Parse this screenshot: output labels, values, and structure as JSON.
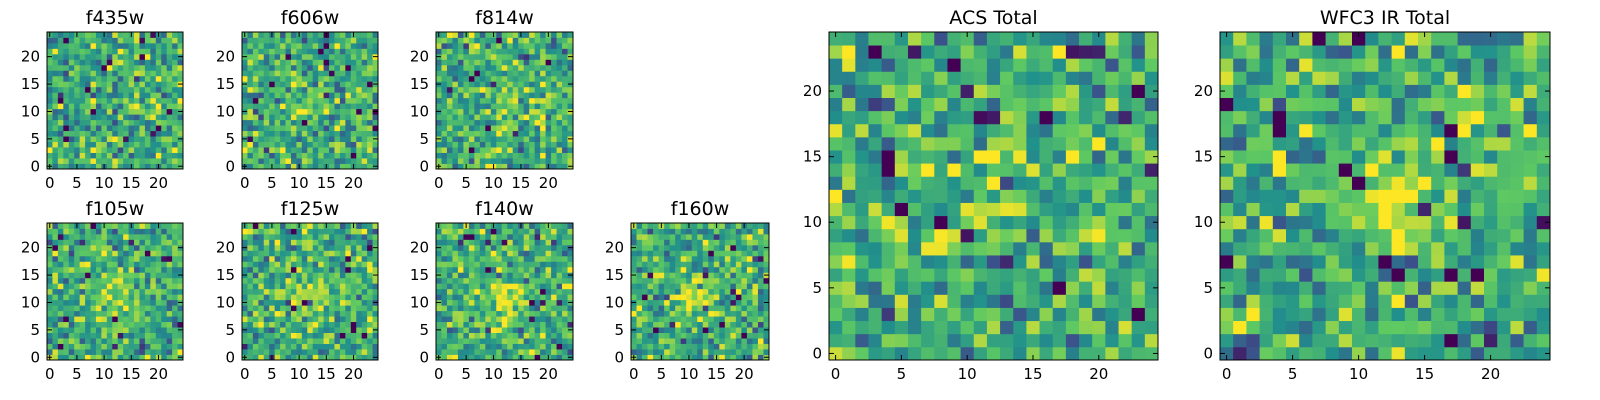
{
  "figure": {
    "colormap": "viridis",
    "colormap_stops": [
      "#440154",
      "#3b528b",
      "#21918c",
      "#5ec962",
      "#fde725"
    ],
    "grid": false,
    "legend": "none"
  },
  "chart_data": [
    {
      "type": "heatmap",
      "title": "f435w",
      "grid_size": [
        25,
        25
      ],
      "xlim": [
        -0.5,
        24.5
      ],
      "ylim": [
        -0.5,
        24.5
      ],
      "xticks": [
        0,
        5,
        10,
        15,
        20
      ],
      "yticks": [
        0,
        5,
        10,
        15,
        20
      ],
      "xlabel": "",
      "ylabel": "",
      "peak": {
        "x": 19,
        "y": 6,
        "sigma": 0.7,
        "amplitude": -1.0
      }
    },
    {
      "type": "heatmap",
      "title": "f606w",
      "grid_size": [
        25,
        25
      ],
      "xlim": [
        -0.5,
        24.5
      ],
      "ylim": [
        -0.5,
        24.5
      ],
      "xticks": [
        0,
        5,
        10,
        15,
        20
      ],
      "yticks": [
        0,
        5,
        10,
        15,
        20
      ],
      "xlabel": "",
      "ylabel": "",
      "peak": {
        "x": 12,
        "y": 12,
        "sigma": 2.0,
        "amplitude": 0.35
      }
    },
    {
      "type": "heatmap",
      "title": "f814w",
      "grid_size": [
        25,
        25
      ],
      "xlim": [
        -0.5,
        24.5
      ],
      "ylim": [
        -0.5,
        24.5
      ],
      "xticks": [
        0,
        5,
        10,
        15,
        20
      ],
      "yticks": [
        0,
        5,
        10,
        15,
        20
      ],
      "xlabel": "",
      "ylabel": "",
      "peak": {
        "x": 12,
        "y": 12,
        "sigma": 2.2,
        "amplitude": 0.45
      }
    },
    {
      "type": "heatmap",
      "title": "f105w",
      "grid_size": [
        25,
        25
      ],
      "xlim": [
        -0.5,
        24.5
      ],
      "ylim": [
        -0.5,
        24.5
      ],
      "xticks": [
        0,
        5,
        10,
        15,
        20
      ],
      "yticks": [
        0,
        5,
        10,
        15,
        20
      ],
      "xlabel": "",
      "ylabel": "",
      "peak": {
        "x": 12,
        "y": 11,
        "sigma": 2.5,
        "amplitude": 0.6
      }
    },
    {
      "type": "heatmap",
      "title": "f125w",
      "grid_size": [
        25,
        25
      ],
      "xlim": [
        -0.5,
        24.5
      ],
      "ylim": [
        -0.5,
        24.5
      ],
      "xticks": [
        0,
        5,
        10,
        15,
        20
      ],
      "yticks": [
        0,
        5,
        10,
        15,
        20
      ],
      "xlabel": "",
      "ylabel": "",
      "peak": {
        "x": 12,
        "y": 11,
        "sigma": 2.5,
        "amplitude": 0.6
      }
    },
    {
      "type": "heatmap",
      "title": "f140w",
      "grid_size": [
        25,
        25
      ],
      "xlim": [
        -0.5,
        24.5
      ],
      "ylim": [
        -0.5,
        24.5
      ],
      "xticks": [
        0,
        5,
        10,
        15,
        20
      ],
      "yticks": [
        0,
        5,
        10,
        15,
        20
      ],
      "xlabel": "",
      "ylabel": "",
      "peak": {
        "x": 12,
        "y": 11,
        "sigma": 2.5,
        "amplitude": 0.7
      }
    },
    {
      "type": "heatmap",
      "title": "f160w",
      "grid_size": [
        25,
        25
      ],
      "xlim": [
        -0.5,
        24.5
      ],
      "ylim": [
        -0.5,
        24.5
      ],
      "xticks": [
        0,
        5,
        10,
        15,
        20
      ],
      "yticks": [
        0,
        5,
        10,
        15,
        20
      ],
      "xlabel": "",
      "ylabel": "",
      "peak": {
        "x": 12,
        "y": 11,
        "sigma": 2.5,
        "amplitude": 0.7
      }
    },
    {
      "type": "heatmap",
      "title": "ACS Total",
      "grid_size": [
        25,
        25
      ],
      "xlim": [
        -0.5,
        24.5
      ],
      "ylim": [
        -0.5,
        24.5
      ],
      "xticks": [
        0,
        5,
        10,
        15,
        20
      ],
      "yticks": [
        0,
        5,
        10,
        15,
        20
      ],
      "xlabel": "",
      "ylabel": "",
      "peak": {
        "x": 12,
        "y": 12,
        "sigma": 1.8,
        "amplitude": 0.5
      }
    },
    {
      "type": "heatmap",
      "title": "WFC3 IR Total",
      "grid_size": [
        25,
        25
      ],
      "xlim": [
        -0.5,
        24.5
      ],
      "ylim": [
        -0.5,
        24.5
      ],
      "xticks": [
        0,
        5,
        10,
        15,
        20
      ],
      "yticks": [
        0,
        5,
        10,
        15,
        20
      ],
      "xlabel": "",
      "ylabel": "",
      "peak": {
        "x": 12,
        "y": 12,
        "sigma": 2.5,
        "amplitude": 0.9
      }
    }
  ]
}
